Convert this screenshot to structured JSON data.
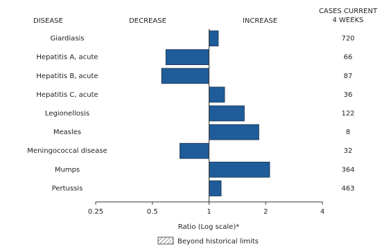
{
  "chart_data": {
    "type": "bar",
    "orientation": "horizontal",
    "headers": {
      "disease": "DISEASE",
      "decrease": "DECREASE",
      "increase": "INCREASE",
      "cases": [
        "CASES CURRENT",
        "4 WEEKS"
      ]
    },
    "categories": [
      "Giardiasis",
      "Hepatitis A, acute",
      "Hepatitis B, acute",
      "Hepatitis C, acute",
      "Legionellosis",
      "Measles",
      "Meningococcal disease",
      "Mumps",
      "Pertussis"
    ],
    "values": [
      1.12,
      0.59,
      0.56,
      1.21,
      1.54,
      1.84,
      0.7,
      2.1,
      1.16
    ],
    "cases": [
      720,
      66,
      87,
      36,
      122,
      8,
      32,
      364,
      463
    ],
    "color": "#1f5c99",
    "x_scale": "log",
    "baseline": 1,
    "xlim": [
      0.25,
      4
    ],
    "xticks": [
      0.25,
      0.5,
      1,
      2,
      4
    ],
    "xlabel": "Ratio (Log scale)*",
    "legend": "Beyond historical limits"
  }
}
